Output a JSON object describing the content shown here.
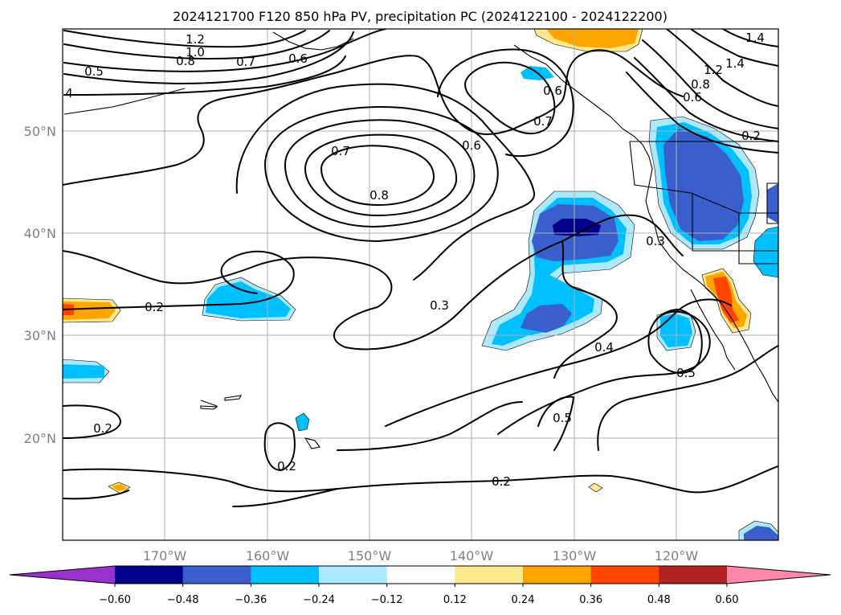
{
  "title": "2024121700 F120 850 hPa PV, precipitation PC (2024122100 - 2024122200)",
  "lon_ticks": [
    "170°W",
    "160°W",
    "150°W",
    "140°W",
    "130°W",
    "120°W"
  ],
  "lat_ticks": [
    "50°N",
    "40°N",
    "30°N",
    "20°N"
  ],
  "contour_labels": [
    "1.2",
    "1.0",
    "0.8",
    "0.7",
    "0.6",
    "0.5",
    "4",
    "0.7",
    "0.8",
    "0.6",
    "0.7",
    "0.6",
    "0.2",
    "0.3",
    "0.3",
    "0.4",
    "0.5",
    "0.5",
    "0.2",
    "0.2",
    "0.2",
    "1.4",
    "1.4",
    "1.2",
    "0.8",
    "0.6",
    "0.2"
  ],
  "colorbar": {
    "ticks": [
      "−0.60",
      "−0.48",
      "−0.36",
      "−0.24",
      "−0.12",
      "0.12",
      "0.24",
      "0.36",
      "0.48",
      "0.60"
    ],
    "colors": [
      "#9932cc",
      "#00008b",
      "#3a5fcd",
      "#00bfff",
      "#ade8ff",
      "#ffffff",
      "#ffe98f",
      "#ffa500",
      "#ff4500",
      "#b22222",
      "#ff87ab"
    ]
  },
  "fill_colors": {
    "blue_light": "#ade8ff",
    "blue_mid": "#00bfff",
    "blue_dark": "#3a5fcd",
    "navy": "#00008b",
    "yellow": "#ffe98f",
    "orange": "#ffa500",
    "red_orange": "#ff4500"
  }
}
